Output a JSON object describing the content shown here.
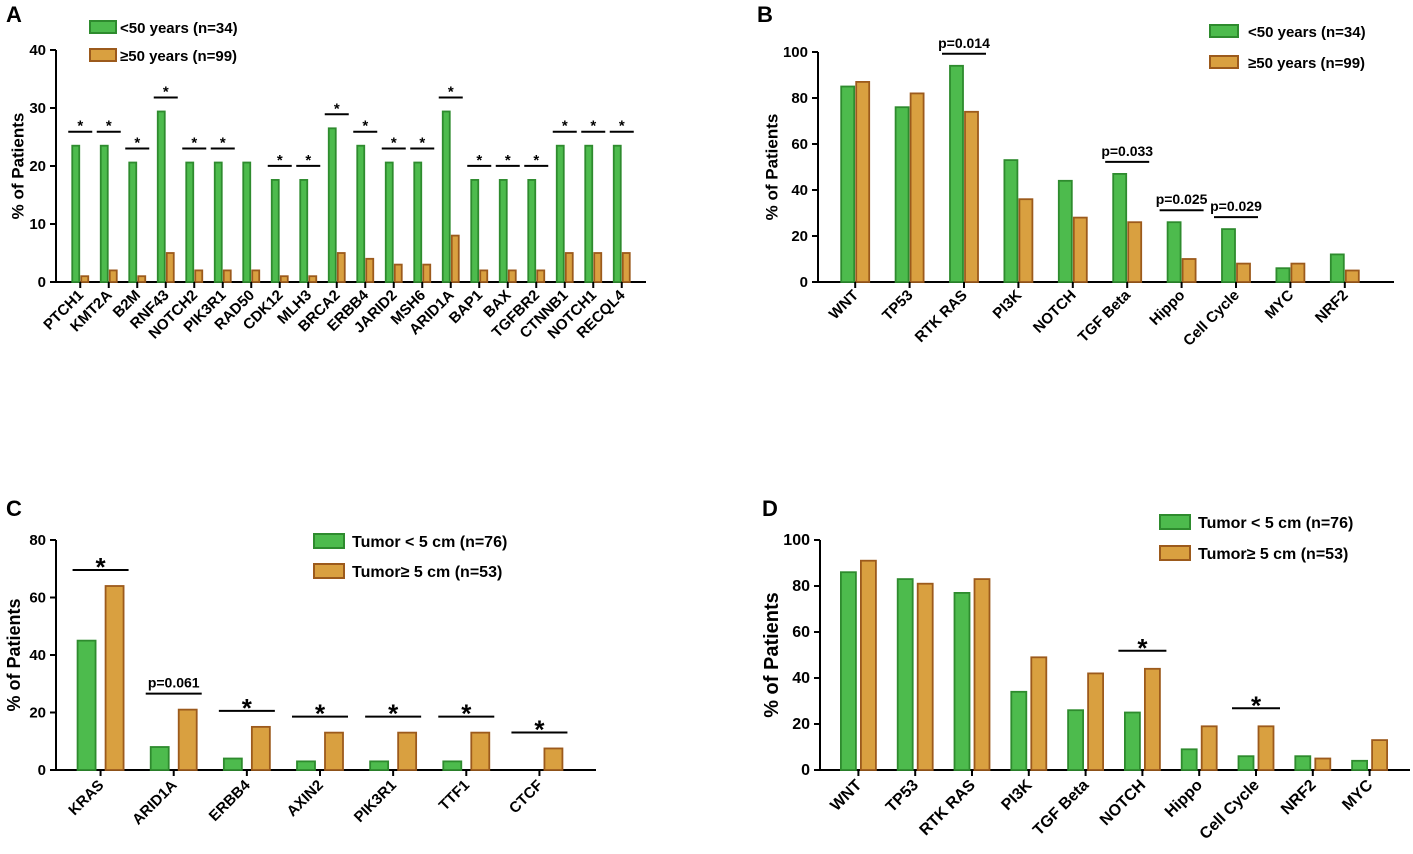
{
  "colors": {
    "green_fill": "#4dbb4d",
    "green_stroke": "#2e8b2e",
    "orange_fill": "#d9a040",
    "orange_stroke": "#9c5a1c",
    "axis": "#000000"
  },
  "chart_data": [
    {
      "panel": "A",
      "type": "bar",
      "title": "",
      "ylabel": "% of Patients",
      "xlabel": "",
      "ylim": [
        0,
        40
      ],
      "yticks": [
        0,
        10,
        20,
        30,
        40
      ],
      "categories": [
        "PTCH1",
        "KMT2A",
        "B2M",
        "RNF43",
        "NOTCH2",
        "PIK3R1",
        "RAD50",
        "CDK12",
        "MLH3",
        "BRCA2",
        "ERBB4",
        "JARID2",
        "MSH6",
        "ARID1A",
        "BAP1",
        "BAX",
        "TGFBR2",
        "CTNNB1",
        "NOTCH1",
        "RECQL4"
      ],
      "series": [
        {
          "name": "<50 years (n=34)",
          "values": [
            23.5,
            23.5,
            20.6,
            29.4,
            20.6,
            20.6,
            20.6,
            17.6,
            17.6,
            26.5,
            23.5,
            20.6,
            20.6,
            29.4,
            17.6,
            17.6,
            17.6,
            23.5,
            23.5,
            23.5
          ]
        },
        {
          "name": "≥50 years (n=99)",
          "values": [
            1,
            2,
            1,
            5,
            2,
            2,
            2,
            1,
            1,
            5,
            4,
            3,
            3,
            8,
            2,
            2,
            2,
            5,
            5,
            5
          ]
        }
      ],
      "significance": [
        {
          "from": 0,
          "to": 0,
          "label": "*"
        },
        {
          "from": 1,
          "to": 1,
          "label": "*"
        },
        {
          "from": 2,
          "to": 2,
          "label": "*"
        },
        {
          "from": 3,
          "to": 3,
          "label": "*"
        },
        {
          "from": 4,
          "to": 4,
          "label": "*"
        },
        {
          "from": 5,
          "to": 5,
          "label": "*"
        },
        {
          "from": 7,
          "to": 7,
          "label": "*"
        },
        {
          "from": 8,
          "to": 8,
          "label": "*"
        },
        {
          "from": 9,
          "to": 9,
          "label": "*"
        },
        {
          "from": 10,
          "to": 10,
          "label": "*"
        },
        {
          "from": 11,
          "to": 11,
          "label": "*"
        },
        {
          "from": 12,
          "to": 12,
          "label": "*"
        },
        {
          "from": 13,
          "to": 13,
          "label": "*"
        },
        {
          "from": 14,
          "to": 14,
          "label": "*"
        },
        {
          "from": 15,
          "to": 15,
          "label": "*"
        },
        {
          "from": 16,
          "to": 16,
          "label": "*"
        },
        {
          "from": 17,
          "to": 17,
          "label": "*"
        },
        {
          "from": 18,
          "to": 18,
          "label": "*"
        },
        {
          "from": 19,
          "to": 19,
          "label": "*"
        }
      ],
      "legend": "top-left"
    },
    {
      "panel": "B",
      "type": "bar",
      "title": "",
      "ylabel": "% of Patients",
      "xlabel": "",
      "ylim": [
        0,
        100
      ],
      "yticks": [
        0,
        20,
        40,
        60,
        80,
        100
      ],
      "categories": [
        "WNT",
        "TP53",
        "RTK RAS",
        "PI3K",
        "NOTCH",
        "TGF Beta",
        "Hippo",
        "Cell Cycle",
        "MYC",
        "NRF2"
      ],
      "series": [
        {
          "name": "<50 years (n=34)",
          "values": [
            85,
            76,
            94,
            53,
            44,
            47,
            26,
            23,
            6,
            12
          ]
        },
        {
          "name": "≥50 years (n=99)",
          "values": [
            87,
            82,
            74,
            36,
            28,
            26,
            10,
            8,
            8,
            5
          ]
        }
      ],
      "significance": [
        {
          "from": 2,
          "to": 2,
          "label": "p=0.014"
        },
        {
          "from": 5,
          "to": 5,
          "label": "p=0.033"
        },
        {
          "from": 6,
          "to": 6,
          "label": "p=0.025"
        },
        {
          "from": 7,
          "to": 7,
          "label": "p=0.029"
        }
      ],
      "legend": "top-right"
    },
    {
      "panel": "C",
      "type": "bar",
      "title": "",
      "ylabel": "% of Patients",
      "xlabel": "",
      "ylim": [
        0,
        80
      ],
      "yticks": [
        0,
        20,
        40,
        60,
        80
      ],
      "categories": [
        "KRAS",
        "ARID1A",
        "ERBB4",
        "AXIN2",
        "PIK3R1",
        "TTF1",
        "CTCF"
      ],
      "series": [
        {
          "name": "Tumor < 5 cm (n=76)",
          "values": [
            45,
            8,
            4,
            3,
            3,
            3,
            0
          ]
        },
        {
          "name": "Tumor≥ 5 cm (n=53)",
          "values": [
            64,
            21,
            15,
            13,
            13,
            13,
            7.5
          ]
        }
      ],
      "significance": [
        {
          "from": 0,
          "to": 0,
          "label": "*"
        },
        {
          "from": 1,
          "to": 1,
          "label": "p=0.061"
        },
        {
          "from": 2,
          "to": 2,
          "label": "*"
        },
        {
          "from": 3,
          "to": 3,
          "label": "*"
        },
        {
          "from": 4,
          "to": 4,
          "label": "*"
        },
        {
          "from": 5,
          "to": 5,
          "label": "*"
        },
        {
          "from": 6,
          "to": 6,
          "label": "*"
        }
      ],
      "legend": "top-right"
    },
    {
      "panel": "D",
      "type": "bar",
      "title": "",
      "ylabel": "% of Patients",
      "xlabel": "",
      "ylim": [
        0,
        100
      ],
      "yticks": [
        0,
        20,
        40,
        60,
        80,
        100
      ],
      "categories": [
        "WNT",
        "TP53",
        "RTK RAS",
        "PI3K",
        "TGF Beta",
        "NOTCH",
        "Hippo",
        "Cell Cycle",
        "NRF2",
        "MYC"
      ],
      "series": [
        {
          "name": "Tumor < 5 cm (n=76)",
          "values": [
            86,
            83,
            77,
            34,
            26,
            25,
            9,
            6,
            6,
            4
          ]
        },
        {
          "name": "Tumor≥ 5 cm (n=53)",
          "values": [
            91,
            81,
            83,
            49,
            42,
            44,
            19,
            19,
            5,
            13
          ]
        }
      ],
      "significance": [
        {
          "from": 5,
          "to": 5,
          "label": "*"
        },
        {
          "from": 7,
          "to": 7,
          "label": "*"
        }
      ],
      "legend": "top-right"
    }
  ]
}
